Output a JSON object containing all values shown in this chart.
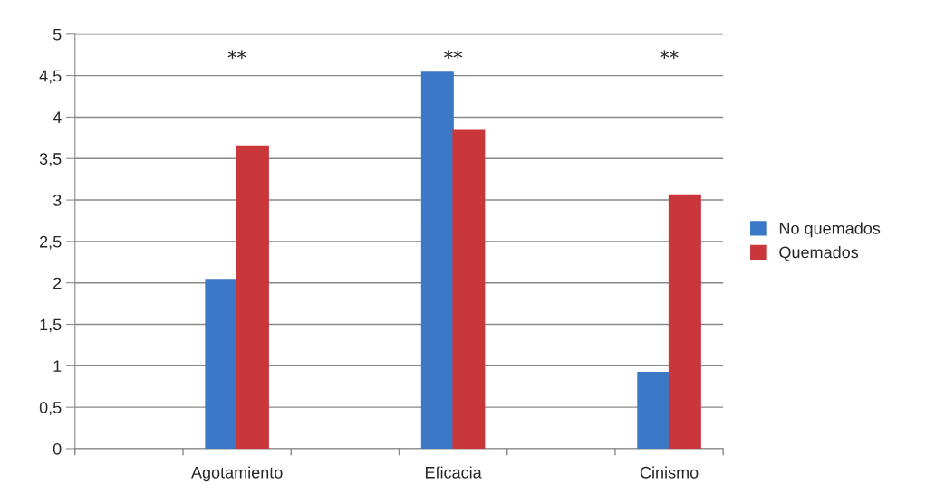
{
  "chart_data": {
    "type": "bar",
    "categories": [
      null,
      "Agotamiento",
      null,
      "Eficacia",
      null,
      "Cinismo"
    ],
    "series": [
      {
        "name": "No quemados",
        "color": "#3b78c6",
        "values": [
          null,
          2.04,
          null,
          4.54,
          null,
          0.92
        ]
      },
      {
        "name": "Quemados",
        "color": "#c9373b",
        "values": [
          null,
          3.65,
          null,
          3.84,
          null,
          3.06
        ]
      }
    ],
    "ylim": [
      0,
      5
    ],
    "yticks": [
      0,
      {
        "value": 0.5,
        "label": "0,5"
      },
      1,
      {
        "value": 1.5,
        "label": "1,5"
      },
      2,
      {
        "value": 2.5,
        "label": "2,5"
      },
      3,
      {
        "value": 3.5,
        "label": "3,5"
      },
      4,
      {
        "value": 4.5,
        "label": "4,5"
      },
      5
    ],
    "grid": "y",
    "legend": "right",
    "annotations": [
      "**",
      "**",
      "**"
    ]
  }
}
